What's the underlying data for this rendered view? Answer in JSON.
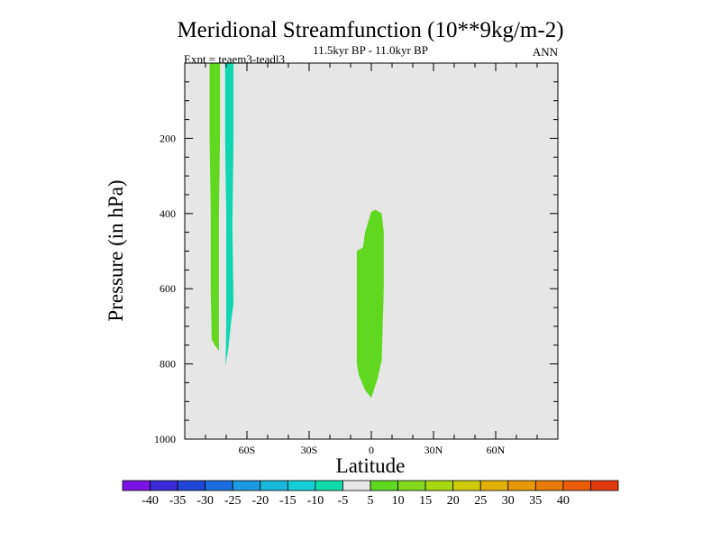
{
  "chart_data": {
    "type": "contour-fill",
    "title": "Meridional Streamfunction (10**9kg/m-2)",
    "subtitle": "11.5kyr BP - 11.0kyr BP",
    "left_label": "Expt = teaem3-teadl3",
    "right_label": "ANN",
    "xlabel": "Latitude",
    "ylabel": "Pressure (in hPa)",
    "xlim": [
      -90,
      90
    ],
    "ylim": [
      0,
      1000
    ],
    "x_ticks": [
      {
        "value": -60,
        "label": "60S"
      },
      {
        "value": -30,
        "label": "30S"
      },
      {
        "value": 0,
        "label": "0"
      },
      {
        "value": 30,
        "label": "30N"
      },
      {
        "value": 60,
        "label": "60N"
      }
    ],
    "y_ticks": [
      {
        "value": 200,
        "label": "200"
      },
      {
        "value": 400,
        "label": "400"
      },
      {
        "value": 600,
        "label": "600"
      },
      {
        "value": 800,
        "label": "800"
      },
      {
        "value": 1000,
        "label": "1000"
      }
    ],
    "background_color": "#e6e6e6",
    "regions": [
      {
        "name": "positive-band-high-lat-south",
        "level": "5 to 10",
        "color": "#5fd81f",
        "points": [
          [
            -78,
            0
          ],
          [
            -73,
            0
          ],
          [
            -73,
            200
          ],
          [
            -73.5,
            400
          ],
          [
            -73.5,
            600
          ],
          [
            -73.5,
            765
          ],
          [
            -75.5,
            750
          ],
          [
            -77,
            735
          ],
          [
            -77.5,
            600
          ],
          [
            -77.5,
            400
          ],
          [
            -78,
            200
          ]
        ]
      },
      {
        "name": "negative-band-high-lat-south",
        "level": "-10 to -5",
        "color": "#0fd8b0",
        "points": [
          [
            -70.5,
            0
          ],
          [
            -66.5,
            0
          ],
          [
            -66.5,
            200
          ],
          [
            -67,
            430
          ],
          [
            -66.5,
            640
          ],
          [
            -67.5,
            680
          ],
          [
            -69,
            760
          ],
          [
            -70.3,
            805
          ],
          [
            -70,
            700
          ],
          [
            -70,
            400
          ],
          [
            -70.5,
            200
          ]
        ]
      },
      {
        "name": "positive-cell-equator",
        "level": "5 to 10",
        "color": "#5fd81f",
        "points": [
          [
            0,
            395
          ],
          [
            2,
            390
          ],
          [
            5,
            400
          ],
          [
            6,
            450
          ],
          [
            6,
            600
          ],
          [
            5.5,
            700
          ],
          [
            5,
            790
          ],
          [
            3,
            840
          ],
          [
            1.5,
            865
          ],
          [
            0,
            890
          ],
          [
            -3,
            870
          ],
          [
            -6,
            830
          ],
          [
            -7,
            800
          ],
          [
            -7,
            700
          ],
          [
            -7,
            600
          ],
          [
            -7,
            500
          ],
          [
            -4,
            490
          ],
          [
            -3,
            450
          ]
        ]
      }
    ],
    "colorbar": {
      "colors": [
        "#7a14e4",
        "#3c2ad8",
        "#2147d8",
        "#1c6ede",
        "#1c99e0",
        "#17b8dc",
        "#17cfd6",
        "#10dcaa",
        "#e8e8e8",
        "#5fd81f",
        "#83d81b",
        "#a8d812",
        "#d0cc0c",
        "#e0b006",
        "#e69806",
        "#e87a08",
        "#e85c0a",
        "#e23a10"
      ],
      "labels": [
        "-40",
        "-35",
        "-30",
        "-25",
        "-20",
        "-15",
        "-10",
        "-5",
        "5",
        "10",
        "15",
        "20",
        "25",
        "30",
        "35",
        "40"
      ]
    }
  }
}
